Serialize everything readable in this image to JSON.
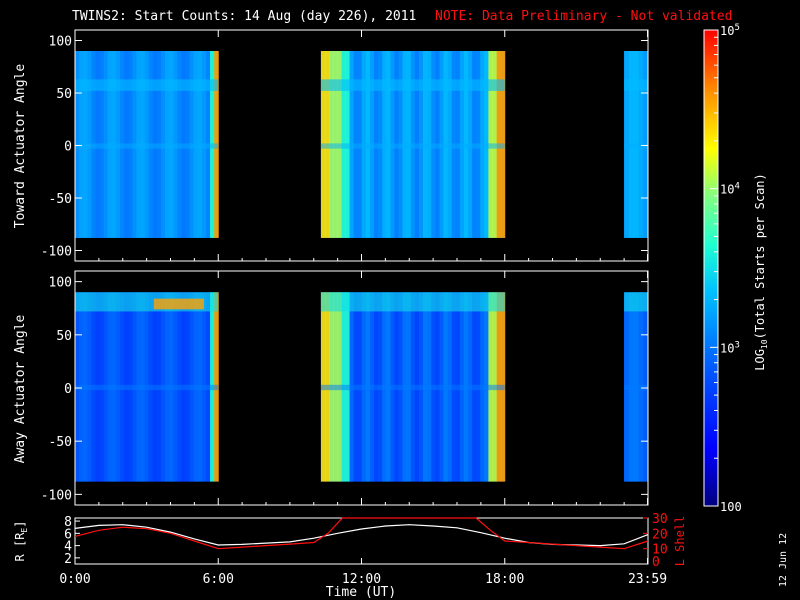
{
  "title": "TWINS2: Start Counts: 14 Aug (day 226), 2011",
  "note": "NOTE: Data Preliminary - Not validated",
  "date_stamp": "12 Jun 12",
  "colors": {
    "background": "#000000",
    "note": "#ff1010",
    "r_line": "#ffffff",
    "lshell_line": "#ff1010"
  },
  "chart_data": [
    {
      "type": "heatmap",
      "name": "toward",
      "ylabel": "Toward Actuator Angle",
      "ylim": [
        -110,
        110
      ],
      "yticks": [
        100,
        50,
        0,
        -50,
        -100
      ],
      "data_ylim": [
        -88,
        90
      ],
      "xlim": [
        0,
        24
      ],
      "data_segments_hours": [
        [
          0,
          6.0
        ],
        [
          10.3,
          18.0
        ],
        [
          23.0,
          24.0
        ]
      ],
      "grid": false
    },
    {
      "type": "heatmap",
      "name": "away",
      "ylabel": "Away Actuator Angle",
      "ylim": [
        -110,
        110
      ],
      "yticks": [
        100,
        50,
        0,
        -50,
        -100
      ],
      "data_ylim": [
        -88,
        90
      ],
      "xlim": [
        0,
        24
      ],
      "data_segments_hours": [
        [
          0,
          6.0
        ],
        [
          10.3,
          18.0
        ],
        [
          23.0,
          24.0
        ]
      ],
      "grid": false
    },
    {
      "type": "line",
      "name": "orbit",
      "xlabel": "Time (UT)",
      "xlim": [
        0,
        24
      ],
      "xtick_labels": [
        {
          "value": 0,
          "label": "0:00"
        },
        {
          "value": 6,
          "label": "6:00"
        },
        {
          "value": 12,
          "label": "12:00"
        },
        {
          "value": 18,
          "label": "18:00"
        },
        {
          "value": 23.98,
          "label": "23:59"
        }
      ],
      "ylabel_left": "R [R",
      "ylabel_left_sub": "E",
      "ylabel_left_end": "]",
      "yticks_left": [
        8,
        6,
        4,
        2
      ],
      "ylim_left": [
        1,
        8.5
      ],
      "ylabel_right": "L Shell",
      "yticks_right": [
        30,
        20,
        10
      ],
      "ylim_right": [
        0,
        30
      ],
      "series": [
        {
          "axis": "left",
          "color": "#ffffff",
          "x": [
            0,
            1,
            2,
            3,
            4,
            5,
            6,
            7,
            8,
            9,
            10,
            11,
            12,
            13,
            14,
            15,
            16,
            17,
            18,
            19,
            20,
            21,
            22,
            23,
            24
          ],
          "y": [
            6.8,
            7.3,
            7.4,
            7.0,
            6.2,
            5.1,
            4.1,
            4.2,
            4.4,
            4.6,
            5.2,
            6.0,
            6.7,
            7.2,
            7.4,
            7.2,
            6.9,
            6.1,
            5.2,
            4.5,
            4.2,
            4.1,
            4.0,
            4.3,
            5.8
          ]
        },
        {
          "axis": "right",
          "color": "#ff1010",
          "x": [
            0,
            1,
            2,
            3,
            4,
            5,
            6,
            7,
            8,
            9,
            10,
            10.6,
            11.2,
            16.8,
            17.4,
            18,
            19,
            20,
            21,
            22,
            23,
            24
          ],
          "y": [
            18,
            22,
            24,
            23,
            20,
            15,
            10,
            11,
            12,
            13,
            14,
            20,
            30,
            30,
            22,
            15,
            14,
            13,
            12,
            11,
            10,
            15
          ]
        }
      ]
    },
    {
      "type": "heatmap",
      "name": "colorbar",
      "ylabel": "LOG",
      "ylabel_sub": "10",
      "ylabel_rest": "(Total Starts per Scan)",
      "scale": "log",
      "range": [
        100,
        100000
      ],
      "major_ticks": [
        {
          "value": 100000,
          "base": "10",
          "exp": "5"
        },
        {
          "value": 10000,
          "base": "10",
          "exp": "4"
        },
        {
          "value": 1000,
          "base": "10",
          "exp": "3"
        },
        {
          "value": 100,
          "base": "100",
          "exp": ""
        }
      ]
    }
  ]
}
